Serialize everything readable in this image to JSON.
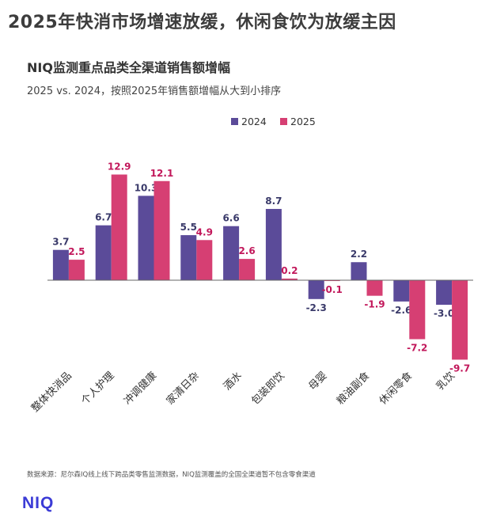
{
  "headline": "2025年快消市场增速放缓，休闲食饮为放缓主因",
  "source": "数据来源：尼尔森IQ线上线下跨品类零售监测数据，NIQ监测覆盖的全国全渠道暂不包含零食渠道",
  "logo": "NIQ",
  "colors": {
    "series_2024": "#5b4b99",
    "series_2025": "#d63f73",
    "axis": "#666666"
  },
  "chart_data": {
    "type": "bar",
    "title": "NIQ监测重点品类全渠道销售额增幅",
    "subtitle": "2025 vs. 2024，按照2025年销售额增幅从大到小排序",
    "categories": [
      "整体快消品",
      "个人护理",
      "冲调健康",
      "家清日杂",
      "酒水",
      "包装即饮",
      "母婴",
      "粮油副食",
      "休闲零食",
      "乳饮"
    ],
    "series": [
      {
        "name": "2024",
        "values": [
          3.7,
          6.7,
          10.3,
          5.5,
          6.6,
          8.7,
          -2.3,
          2.2,
          -2.6,
          -3.0
        ],
        "labels": [
          "3.7",
          "6.7",
          "10.3",
          "5.5",
          "6.6",
          "8.7",
          "-2.3",
          "2.2",
          "-2.6",
          "-3.0"
        ]
      },
      {
        "name": "2025",
        "values": [
          2.5,
          12.9,
          12.1,
          4.9,
          2.6,
          0.2,
          -0.1,
          -1.9,
          -7.2,
          -9.7
        ],
        "labels": [
          "2.5",
          "12.9",
          "12.1",
          "4.9",
          "2.6",
          "0.2",
          "-0.1",
          "-1.9",
          "-7.2",
          "-9.7"
        ]
      }
    ],
    "ylim": [
      -10.7,
      14.3
    ],
    "xlabel": "",
    "ylabel": "",
    "grid": false,
    "legend": "top-center"
  }
}
